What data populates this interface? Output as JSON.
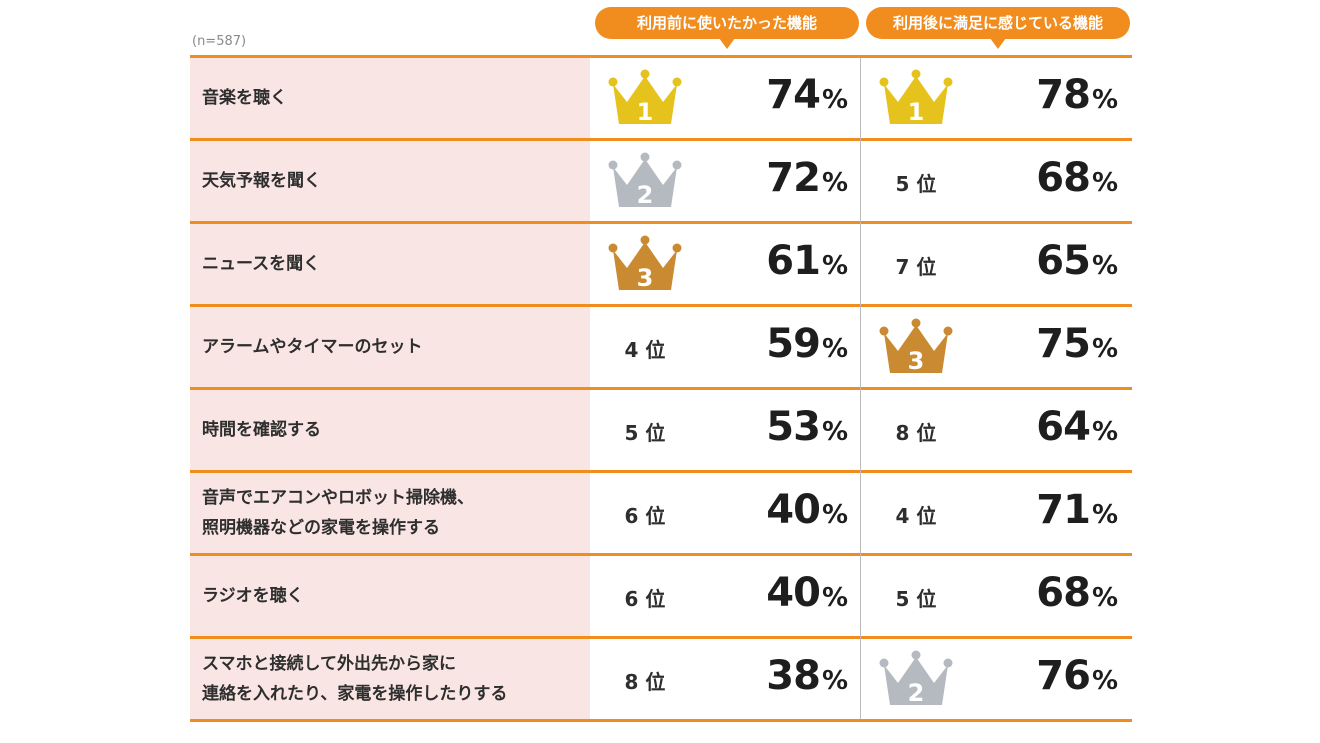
{
  "chart_data": {
    "type": "table",
    "sample_label": "(n=587)",
    "columns": [
      {
        "key": "before",
        "label": "利用前に使いたかった機能"
      },
      {
        "key": "after",
        "label": "利用後に満足に感じている機能"
      }
    ],
    "percent_symbol": "%",
    "rows": [
      {
        "label": "音楽を聴く",
        "before": {
          "rank": 1,
          "rank_text": "",
          "value": 74
        },
        "after": {
          "rank": 1,
          "rank_text": "",
          "value": 78
        }
      },
      {
        "label": "天気予報を聞く",
        "before": {
          "rank": 2,
          "rank_text": "",
          "value": 72
        },
        "after": {
          "rank": 5,
          "rank_text": "5 位",
          "value": 68
        }
      },
      {
        "label": "ニュースを聞く",
        "before": {
          "rank": 3,
          "rank_text": "",
          "value": 61
        },
        "after": {
          "rank": 7,
          "rank_text": "7 位",
          "value": 65
        }
      },
      {
        "label": "アラームやタイマーのセット",
        "before": {
          "rank": 4,
          "rank_text": "4 位",
          "value": 59
        },
        "after": {
          "rank": 3,
          "rank_text": "",
          "value": 75
        }
      },
      {
        "label": "時間を確認する",
        "before": {
          "rank": 5,
          "rank_text": "5 位",
          "value": 53
        },
        "after": {
          "rank": 8,
          "rank_text": "8 位",
          "value": 64
        }
      },
      {
        "label": "音声でエアコンやロボット掃除機、\n照明機器などの家電を操作する",
        "before": {
          "rank": 6,
          "rank_text": "6 位",
          "value": 40
        },
        "after": {
          "rank": 4,
          "rank_text": "4 位",
          "value": 71
        }
      },
      {
        "label": "ラジオを聴く",
        "before": {
          "rank": 6,
          "rank_text": "6 位",
          "value": 40
        },
        "after": {
          "rank": 5,
          "rank_text": "5 位",
          "value": 68
        }
      },
      {
        "label": "スマホと接続して外出先から家に\n連絡を入れたり、家電を操作したりする",
        "before": {
          "rank": 8,
          "rank_text": "8 位",
          "value": 38
        },
        "after": {
          "rank": 2,
          "rank_text": "",
          "value": 76
        }
      }
    ]
  },
  "colors": {
    "accent": "#f08d1e",
    "label_bg": "#f9e6e4",
    "gold": "#e6c21d",
    "silver": "#b5b9c0",
    "bronze": "#c98a32"
  },
  "icons": {
    "crown": "crown-icon"
  }
}
